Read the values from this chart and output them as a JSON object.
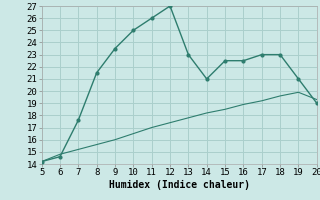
{
  "xlabel": "Humidex (Indice chaleur)",
  "x_values": [
    5,
    6,
    7,
    8,
    9,
    10,
    11,
    12,
    13,
    14,
    15,
    16,
    17,
    18,
    19,
    20
  ],
  "y_main": [
    14.2,
    14.6,
    17.6,
    21.5,
    23.5,
    25.0,
    26.0,
    27.0,
    23.0,
    21.0,
    22.5,
    22.5,
    23.0,
    23.0,
    21.0,
    19.0
  ],
  "y_ref": [
    14.2,
    14.8,
    15.2,
    15.6,
    16.0,
    16.5,
    17.0,
    17.4,
    17.8,
    18.2,
    18.5,
    18.9,
    19.2,
    19.6,
    19.9,
    19.3
  ],
  "line_color": "#2e7d6e",
  "bg_color": "#cce8e6",
  "grid_color": "#aacfcc",
  "xlim": [
    5,
    20
  ],
  "ylim": [
    14,
    27
  ],
  "xticks": [
    5,
    6,
    7,
    8,
    9,
    10,
    11,
    12,
    13,
    14,
    15,
    16,
    17,
    18,
    19,
    20
  ],
  "yticks": [
    14,
    15,
    16,
    17,
    18,
    19,
    20,
    21,
    22,
    23,
    24,
    25,
    26,
    27
  ],
  "label_fontsize": 7.0,
  "tick_fontsize": 6.5
}
